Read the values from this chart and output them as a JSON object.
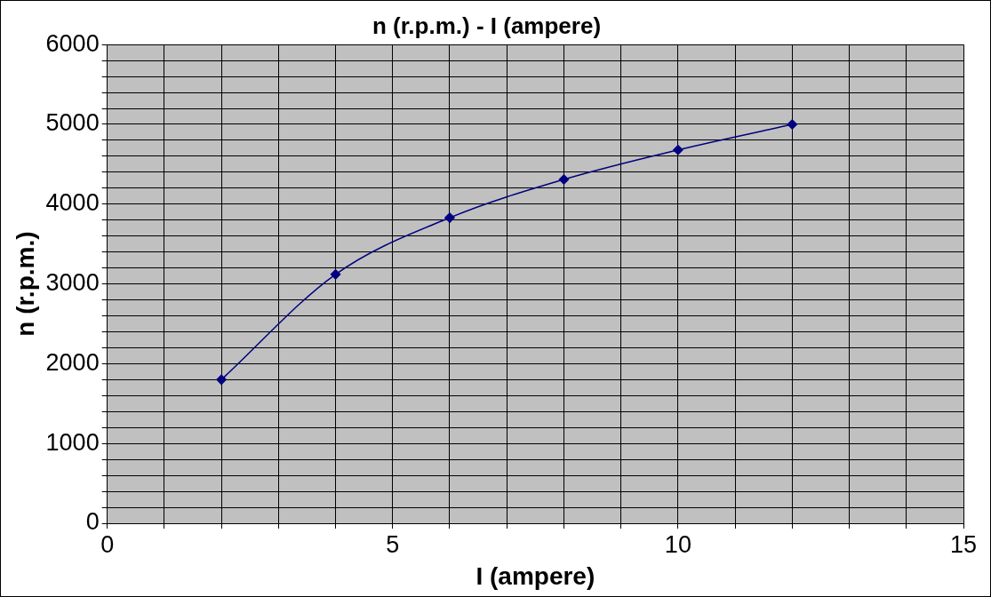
{
  "chart_data": {
    "type": "line",
    "title": "n (r.p.m.) - I (ampere)",
    "xlabel": "I (ampere)",
    "ylabel": "n (r.p.m.)",
    "x": [
      2,
      4,
      6,
      8,
      10,
      12
    ],
    "series": [
      {
        "color": "#000080",
        "values": [
          1800,
          3120,
          3830,
          4310,
          4680,
          5000
        ]
      }
    ],
    "xlim": [
      0,
      15
    ],
    "xticks": [
      0,
      {
        "value": 1,
        "label": null
      },
      {
        "value": 2,
        "label": null
      },
      {
        "value": 3,
        "label": null
      },
      {
        "value": 4,
        "label": null
      },
      5,
      {
        "value": 6,
        "label": null
      },
      {
        "value": 7,
        "label": null
      },
      {
        "value": 8,
        "label": null
      },
      {
        "value": 9,
        "label": null
      },
      10,
      {
        "value": 11,
        "label": null
      },
      {
        "value": 12,
        "label": null
      },
      {
        "value": 13,
        "label": null
      },
      {
        "value": 14,
        "label": null
      },
      15
    ],
    "ylim": [
      0,
      6000
    ],
    "yticks": [
      0,
      {
        "value": 200,
        "label": null
      },
      {
        "value": 400,
        "label": null
      },
      {
        "value": 600,
        "label": null
      },
      {
        "value": 800,
        "label": null
      },
      1000,
      {
        "value": 1200,
        "label": null
      },
      {
        "value": 1400,
        "label": null
      },
      {
        "value": 1600,
        "label": null
      },
      {
        "value": 1800,
        "label": null
      },
      2000,
      {
        "value": 2200,
        "label": null
      },
      {
        "value": 2400,
        "label": null
      },
      {
        "value": 2600,
        "label": null
      },
      {
        "value": 2800,
        "label": null
      },
      3000,
      {
        "value": 3200,
        "label": null
      },
      {
        "value": 3400,
        "label": null
      },
      {
        "value": 3600,
        "label": null
      },
      {
        "value": 3800,
        "label": null
      },
      4000,
      {
        "value": 4200,
        "label": null
      },
      {
        "value": 4400,
        "label": null
      },
      {
        "value": 4600,
        "label": null
      },
      {
        "value": 4800,
        "label": null
      },
      5000,
      {
        "value": 5200,
        "label": null
      },
      {
        "value": 5400,
        "label": null
      },
      {
        "value": 5600,
        "label": null
      },
      {
        "value": 5800,
        "label": null
      },
      6000
    ],
    "grid": true,
    "legend": false,
    "marker": "diamond",
    "line_style": "solid"
  }
}
